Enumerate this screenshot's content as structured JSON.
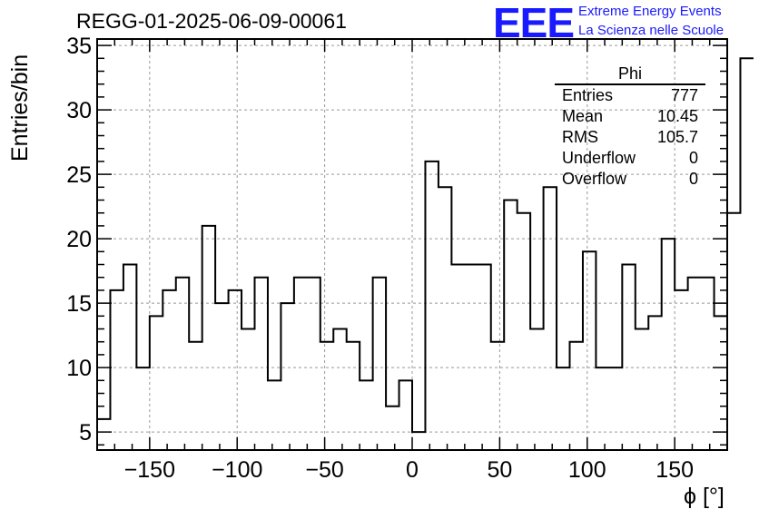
{
  "title": "REGG-01-2025-06-09-00061",
  "logo": {
    "mark": "EEE",
    "line1": "Extreme Energy Events",
    "line2": "La Scienza nelle Scuole"
  },
  "stats_box": {
    "title": "Phi",
    "rows": [
      {
        "label": "Entries",
        "value": "777"
      },
      {
        "label": "Mean",
        "value": "10.45"
      },
      {
        "label": "RMS",
        "value": "105.7"
      },
      {
        "label": "Underflow",
        "value": "0"
      },
      {
        "label": "Overflow",
        "value": "0"
      }
    ]
  },
  "colors": {
    "line": "#000000",
    "grid": "#999999",
    "logo": "#1a1aff"
  },
  "chart_data": {
    "type": "histogram",
    "title": "REGG-01-2025-06-09-00061",
    "xlabel": "ϕ [°]",
    "ylabel": "Entries/bin",
    "xlim": [
      -180,
      180
    ],
    "ylim": [
      3.6,
      35.5
    ],
    "xticks": [
      -150,
      -100,
      -50,
      0,
      50,
      100,
      150
    ],
    "yticks": [
      5,
      10,
      15,
      20,
      25,
      30,
      35
    ],
    "grid": true,
    "bin_edges_start": -180,
    "bin_width": 7.5,
    "values": [
      6,
      16,
      18,
      10,
      14,
      16,
      17,
      12,
      21,
      15,
      16,
      13,
      17,
      9,
      15,
      17,
      17,
      12,
      13,
      12,
      9,
      17,
      7,
      9,
      5,
      26,
      24,
      18,
      18,
      18,
      12,
      23,
      22,
      13,
      24,
      10,
      12,
      19,
      10,
      10,
      18,
      13,
      14,
      20,
      16,
      17,
      17,
      14,
      22,
      34
    ]
  }
}
